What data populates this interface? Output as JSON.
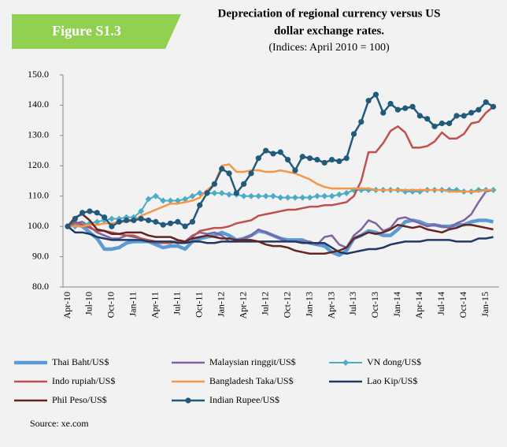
{
  "chart_data": {
    "type": "line",
    "badge": "Figure S1.3",
    "title": [
      "Depreciation of regional currency versus US",
      "dollar exchange rates."
    ],
    "subtitle": "(Indices: April 2010 = 100)",
    "source": "Source: xe.com",
    "categories": [
      "Apr-10",
      null,
      null,
      "Jul-10",
      null,
      null,
      "Oct-10",
      null,
      null,
      "Jan-11",
      null,
      null,
      "Apr-11",
      null,
      null,
      "Jul-11",
      null,
      null,
      "Oct-11",
      null,
      null,
      "Jan-12",
      null,
      null,
      "Apr-12",
      null,
      null,
      "Jul-12",
      null,
      null,
      "Oct-12",
      null,
      null,
      "Jan-13",
      null,
      null,
      "Apr-13",
      null,
      null,
      "Jul-13",
      null,
      null,
      "Oct-13",
      null,
      null,
      "Jan-14",
      null,
      null,
      "Apr-14",
      null,
      null,
      "Jul-14",
      null,
      null,
      "Oct-14",
      null,
      null,
      "Jan-15",
      null
    ],
    "ylim": [
      80,
      150
    ],
    "yticks": [
      {
        "value": 80,
        "label": "80.0"
      },
      {
        "value": 90,
        "label": "90.0"
      },
      {
        "value": 100,
        "label": "100.0"
      },
      {
        "value": 110,
        "label": "110.0"
      },
      {
        "value": 120,
        "label": "120.0"
      },
      {
        "value": 130,
        "label": "130.0"
      },
      {
        "value": 140,
        "label": "140.0"
      },
      {
        "value": 150,
        "label": "150.0"
      }
    ],
    "series": [
      {
        "name": "Thai Baht/US$",
        "color": "#5b9bd5",
        "values": [
          100,
          101,
          100,
          98,
          96,
          92.5,
          92.5,
          93,
          94.5,
          95,
          95,
          95,
          94,
          93,
          93.5,
          93.5,
          92.5,
          95,
          96,
          96.5,
          97,
          98,
          97,
          95.5,
          96,
          97,
          98.5,
          98,
          97,
          96,
          95.5,
          95.5,
          95.5,
          94.5,
          94,
          93.5,
          91.5,
          90.5,
          92,
          96,
          97,
          98.5,
          98,
          97,
          97,
          99,
          101.5,
          102,
          101.5,
          100.5,
          100.5,
          100,
          100,
          100.5,
          100.5,
          101.5,
          102,
          102,
          101.5
        ]
      },
      {
        "name": "Malaysian ringgit/US$",
        "color": "#8064a2",
        "values": [
          100,
          101,
          101.5,
          100,
          98,
          97,
          96,
          96,
          97,
          96.5,
          96,
          95,
          94.5,
          94.5,
          95,
          95,
          95,
          97,
          98,
          97.5,
          98,
          97,
          95,
          95,
          96,
          97,
          99,
          98,
          97,
          96,
          95,
          95,
          95,
          95,
          94,
          96.5,
          97,
          94,
          93,
          97,
          99,
          102,
          101,
          98.5,
          99.5,
          102.5,
          103,
          102,
          101,
          100,
          100.5,
          100,
          99.5,
          101,
          102,
          104,
          108,
          111.5,
          112
        ]
      },
      {
        "name": "VN dong/US$",
        "color": "#4bacc6",
        "marker": "diamond",
        "values": [
          100,
          100,
          100.5,
          101,
          101.5,
          102,
          102.5,
          102.5,
          103,
          103,
          105,
          109,
          110,
          108.5,
          108.5,
          108.5,
          109,
          110,
          111,
          111,
          111,
          111,
          110.5,
          110.5,
          110,
          110,
          110,
          110,
          110,
          109.5,
          109.5,
          109.5,
          109.5,
          109.5,
          110,
          110,
          110,
          110.5,
          111,
          112,
          112,
          112,
          112,
          112,
          112,
          112,
          111.5,
          111.5,
          111.5,
          112,
          112,
          112,
          112,
          112,
          111.5,
          111.5,
          112,
          112,
          112
        ]
      },
      {
        "name": "Indo rupiah/US$",
        "color": "#c0504d",
        "values": [
          100,
          101.5,
          100.5,
          99.5,
          98.5,
          98.5,
          98,
          97.5,
          97,
          97,
          96,
          95.5,
          95,
          94.5,
          94.5,
          95,
          95,
          96.5,
          98.5,
          99,
          99.5,
          99.5,
          100,
          101,
          101.5,
          102,
          103.5,
          104,
          104.5,
          105,
          105.5,
          105.5,
          106,
          106.5,
          106.5,
          107,
          107,
          107.5,
          108,
          110,
          115,
          124.5,
          124.5,
          127.5,
          131.5,
          133,
          131,
          126,
          126,
          126.5,
          128,
          131,
          129,
          129,
          130.5,
          134,
          134.5,
          137.5,
          139.5
        ]
      },
      {
        "name": "Bangladesh Taka/US$",
        "color": "#f79646",
        "values": [
          100,
          100,
          100,
          100.5,
          100.5,
          101,
          101,
          101.5,
          101.5,
          102,
          103.5,
          104.5,
          105.5,
          106.5,
          107.5,
          107.5,
          108,
          108.5,
          109.5,
          112,
          114,
          120,
          120.5,
          118,
          118,
          118.5,
          118.5,
          118,
          118,
          118.5,
          118,
          117.5,
          116.5,
          115.5,
          114,
          113,
          112.5,
          112.5,
          112.5,
          112.5,
          112.5,
          112.5,
          112,
          112,
          112,
          112,
          112,
          112,
          112,
          112,
          112,
          112,
          111.5,
          111.5,
          111.5,
          111.5,
          111.5,
          112,
          112
        ]
      },
      {
        "name": "Lao Kip/US$",
        "color": "#1f3864",
        "values": [
          100,
          98,
          98,
          97.5,
          96.5,
          96,
          95.5,
          95.5,
          95.5,
          95.5,
          95.5,
          95,
          95,
          95,
          95,
          94.5,
          94.5,
          95,
          95,
          94.5,
          94.5,
          95,
          95,
          95,
          95,
          95,
          95,
          95,
          95,
          95,
          95,
          95,
          94.5,
          94.5,
          94.5,
          94.5,
          93,
          91.5,
          91,
          91.5,
          92,
          92.5,
          92.5,
          93,
          94,
          94.5,
          95,
          95,
          95,
          95.5,
          95.5,
          95.5,
          95.5,
          95,
          95,
          95,
          96,
          96,
          96.5
        ]
      },
      {
        "name": "Phil Peso/US$",
        "color": "#632523",
        "values": [
          100,
          103,
          104,
          102,
          99,
          98.5,
          97.5,
          97.5,
          98,
          98,
          98,
          97,
          96.5,
          96.5,
          96.5,
          95.5,
          95,
          96,
          96.5,
          97,
          96.5,
          96,
          96,
          95.5,
          95.5,
          95.5,
          95,
          94,
          93.5,
          93.5,
          93,
          92,
          91.5,
          91,
          91,
          91,
          91.5,
          92,
          93,
          96,
          97,
          98,
          97.5,
          98,
          99,
          100.5,
          100,
          99.5,
          100,
          99,
          98.5,
          98,
          99,
          99.5,
          100.5,
          100.5,
          100,
          99.5,
          99
        ]
      },
      {
        "name": "Indian Rupee/US$",
        "color": "#215a7a",
        "marker": "circle",
        "values": [
          100,
          102.5,
          104.5,
          105,
          104.5,
          103,
          100,
          101.5,
          102,
          102,
          102.5,
          102,
          101.5,
          100.5,
          101,
          101.5,
          100,
          101.5,
          107,
          111,
          114,
          119,
          117.5,
          111,
          114,
          117.5,
          122.5,
          125,
          124,
          124.5,
          122,
          118.5,
          123,
          122.5,
          122,
          121,
          122,
          121.5,
          122.5,
          130.5,
          134.5,
          141.5,
          143.5,
          137.5,
          140.5,
          138.5,
          139,
          139.5,
          136.5,
          135.5,
          133,
          134,
          134,
          136.5,
          136.5,
          137.5,
          138.5,
          141,
          139.5
        ]
      }
    ]
  }
}
